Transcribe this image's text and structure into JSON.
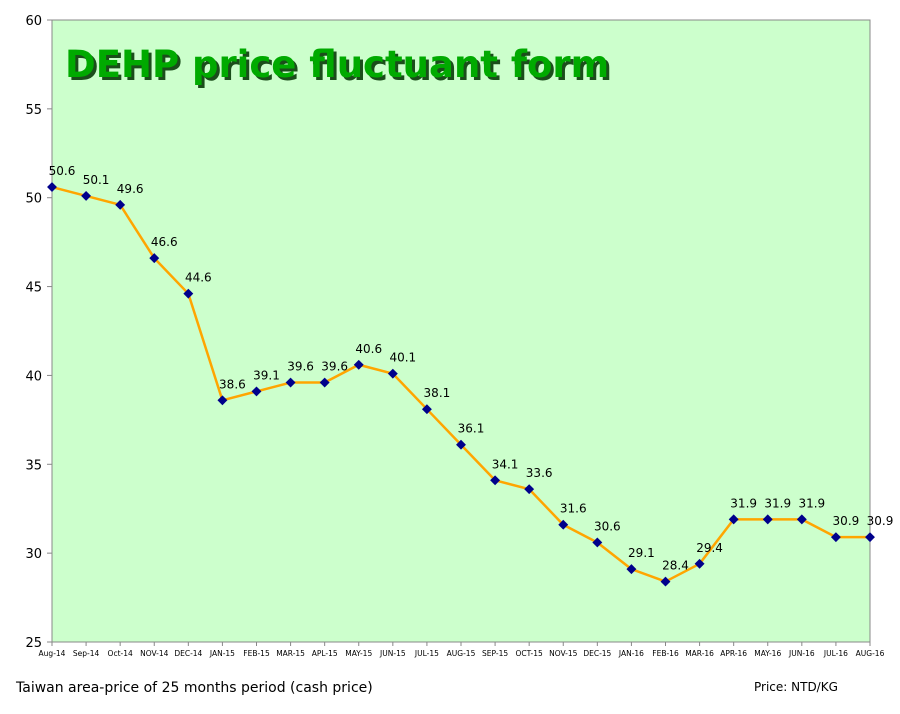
{
  "chart_data": {
    "type": "line",
    "title": "DEHP price fluctuant form",
    "categories": [
      "Aug-14",
      "Sep-14",
      "Oct-14",
      "NOV-14",
      "DEC-14",
      "JAN-15",
      "FEB-15",
      "MAR-15",
      "APL-15",
      "MAY-15",
      "JUN-15",
      "JUL-15",
      "AUG-15",
      "SEP-15",
      "OCT-15",
      "NOV-15",
      "DEC-15",
      "JAN-16",
      "FEB-16",
      "MAR-16",
      "APR-16",
      "MAY-16",
      "JUN-16",
      "JUL-16",
      "AUG-16"
    ],
    "values": [
      50.6,
      50.1,
      49.6,
      46.6,
      44.6,
      38.6,
      39.1,
      39.6,
      39.6,
      40.6,
      40.1,
      38.1,
      36.1,
      34.1,
      33.6,
      31.6,
      30.6,
      29.1,
      28.4,
      29.4,
      31.9,
      31.9,
      31.9,
      30.9,
      30.9
    ],
    "ylim": [
      25,
      60
    ],
    "yticks": [
      25,
      30,
      35,
      40,
      45,
      50,
      55,
      60
    ],
    "grid": false,
    "colors": {
      "plot_background": "#ccffcc",
      "line": "#ffa500",
      "marker": "#00008b",
      "title_fill": "#00aa00",
      "title_shadow": "#1b4d1b"
    }
  },
  "footer": {
    "left": "Taiwan area-price of 25 months period (cash price)",
    "right": "Price: NTD/KG"
  }
}
